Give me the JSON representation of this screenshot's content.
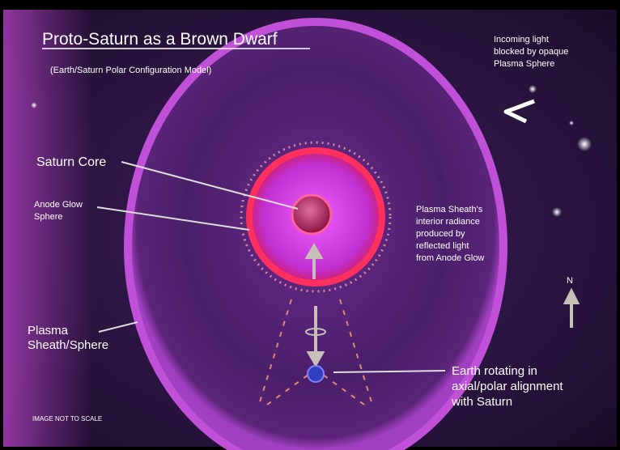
{
  "title": "Proto-Saturn as a Brown Dwarf",
  "subtitle": "(Earth/Saturn Polar Configuration Model)",
  "labels": [
    {
      "name": "incoming-light",
      "lines": [
        "Incoming light",
        "blocked by opaque",
        "Plasma Sphere"
      ]
    },
    {
      "name": "saturn-core",
      "lines": [
        "Saturn Core"
      ]
    },
    {
      "name": "anode-glow",
      "lines": [
        "Anode Glow",
        "Sphere"
      ]
    },
    {
      "name": "sheath-radiance",
      "lines": [
        "Plasma Sheath's",
        "interior radiance",
        "produced by",
        "reflected light",
        "from Anode Glow"
      ]
    },
    {
      "name": "north",
      "lines": [
        "N"
      ]
    },
    {
      "name": "plasma-sheath",
      "lines": [
        "Plasma",
        "Sheath/Sphere"
      ]
    },
    {
      "name": "earth",
      "lines": [
        "Earth rotating in",
        "axial/polar alignment",
        "with Saturn"
      ]
    },
    {
      "name": "scale-note",
      "lines": [
        "IMAGE NOT TO SCALE"
      ]
    }
  ]
}
